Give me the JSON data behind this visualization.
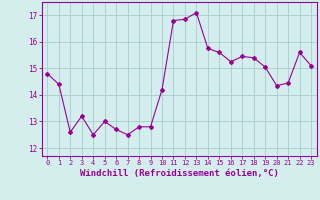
{
  "x": [
    0,
    1,
    2,
    3,
    4,
    5,
    6,
    7,
    8,
    9,
    10,
    11,
    12,
    13,
    14,
    15,
    16,
    17,
    18,
    19,
    20,
    21,
    22,
    23
  ],
  "y": [
    14.8,
    14.4,
    12.6,
    13.2,
    12.5,
    13.0,
    12.7,
    12.5,
    12.8,
    12.8,
    14.2,
    16.8,
    16.85,
    17.1,
    15.75,
    15.6,
    15.25,
    15.45,
    15.4,
    15.05,
    14.35,
    14.45,
    15.6,
    15.1
  ],
  "line_color": "#990099",
  "marker": "D",
  "marker_size": 2.0,
  "bg_color": "#d4eeee",
  "grid_color": "#aacccc",
  "tick_color": "#990099",
  "label_color": "#990099",
  "xlabel": "Windchill (Refroidissement éolien,°C)",
  "xlabel_fontsize": 6.5,
  "ytick_labels": [
    "12",
    "13",
    "14",
    "15",
    "16",
    "17"
  ],
  "yticks": [
    12,
    13,
    14,
    15,
    16,
    17
  ],
  "ylim": [
    11.7,
    17.5
  ],
  "xlim": [
    -0.5,
    23.5
  ],
  "xticks": [
    0,
    1,
    2,
    3,
    4,
    5,
    6,
    7,
    8,
    9,
    10,
    11,
    12,
    13,
    14,
    15,
    16,
    17,
    18,
    19,
    20,
    21,
    22,
    23
  ]
}
